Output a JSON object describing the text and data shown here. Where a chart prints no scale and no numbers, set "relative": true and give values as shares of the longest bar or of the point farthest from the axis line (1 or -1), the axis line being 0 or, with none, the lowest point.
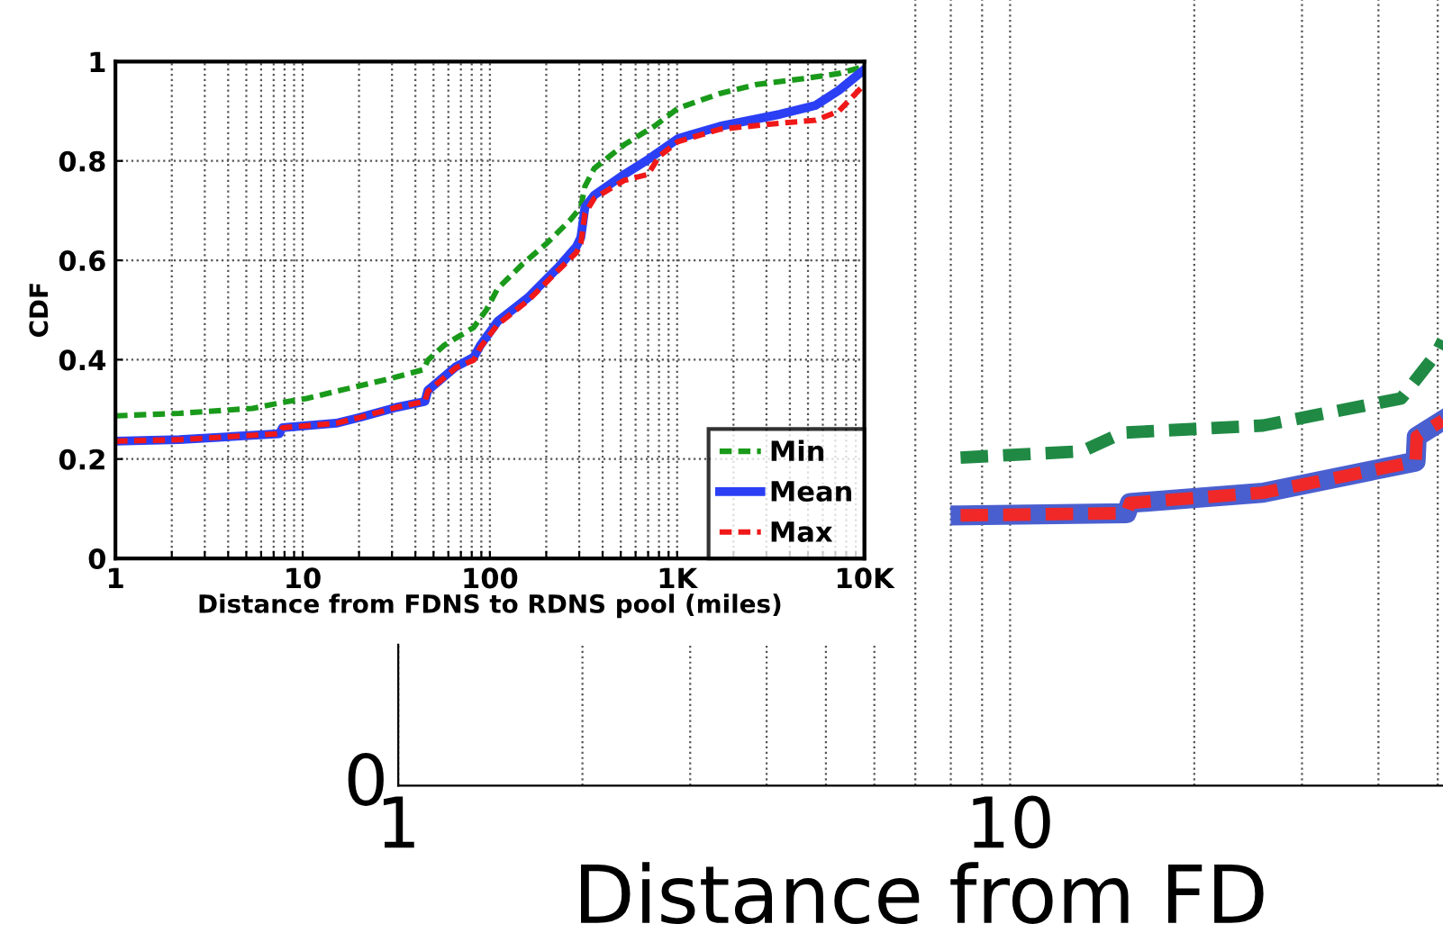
{
  "chart_data": [
    {
      "type": "line",
      "xlabel": "Distance from FDNS to RDNS pool (miles)",
      "ylabel": "CDF",
      "log": "x",
      "grid": true,
      "legend": "bottom right",
      "xlim": [
        1,
        10000
      ],
      "ylim": [
        0,
        1
      ],
      "xticks": [
        1,
        {
          "value": 2,
          "label": null
        },
        {
          "value": 3,
          "label": null
        },
        {
          "value": 4,
          "label": null
        },
        {
          "value": 5,
          "label": null
        },
        {
          "value": 6,
          "label": null
        },
        {
          "value": 7,
          "label": null
        },
        {
          "value": 8,
          "label": null
        },
        {
          "value": 9,
          "label": null
        },
        10,
        {
          "value": 20,
          "label": null
        },
        {
          "value": 30,
          "label": null
        },
        {
          "value": 40,
          "label": null
        },
        {
          "value": 50,
          "label": null
        },
        {
          "value": 60,
          "label": null
        },
        {
          "value": 70,
          "label": null
        },
        {
          "value": 80,
          "label": null
        },
        {
          "value": 90,
          "label": null
        },
        100,
        {
          "value": 200,
          "label": null
        },
        {
          "value": 300,
          "label": null
        },
        {
          "value": 400,
          "label": null
        },
        {
          "value": 500,
          "label": null
        },
        {
          "value": 600,
          "label": null
        },
        {
          "value": 700,
          "label": null
        },
        {
          "value": 800,
          "label": null
        },
        {
          "value": 900,
          "label": null
        },
        {
          "value": 1000,
          "label": "1K"
        },
        {
          "value": 2000,
          "label": null
        },
        {
          "value": 3000,
          "label": null
        },
        {
          "value": 4000,
          "label": null
        },
        {
          "value": 5000,
          "label": null
        },
        {
          "value": 6000,
          "label": null
        },
        {
          "value": 7000,
          "label": null
        },
        {
          "value": 8000,
          "label": null
        },
        {
          "value": 9000,
          "label": null
        },
        {
          "value": 10000,
          "label": "10K"
        }
      ],
      "yticks": [
        0,
        0.2,
        0.4,
        0.6,
        0.8,
        1
      ],
      "series": [
        {
          "name": "Min",
          "color": "#1a9a1a",
          "line_style": "dashed",
          "x": [
            1,
            2.2,
            5.4,
            7.8,
            10.5,
            17.5,
            29.4,
            44.3,
            46.6,
            57,
            82,
            96,
            110,
            149,
            201,
            270,
            306,
            322,
            361,
            523,
            756,
            1010,
            1700,
            2670,
            4780,
            7300,
            10000
          ],
          "values": [
            0.287,
            0.292,
            0.302,
            0.314,
            0.322,
            0.342,
            0.362,
            0.38,
            0.399,
            0.429,
            0.465,
            0.501,
            0.543,
            0.592,
            0.634,
            0.682,
            0.707,
            0.749,
            0.785,
            0.833,
            0.87,
            0.906,
            0.936,
            0.954,
            0.966,
            0.976,
            0.99
          ]
        },
        {
          "name": "Mean",
          "color": "#2b3ff5",
          "line_style": "solid",
          "x": [
            1,
            2.2,
            7.5,
            7.8,
            15.1,
            20.3,
            31.6,
            45,
            46.6,
            66,
            82,
            89,
            110,
            160,
            232,
            290,
            306,
            322,
            361,
            523,
            700,
            1010,
            1700,
            3550,
            5500,
            7300,
            10000
          ],
          "values": [
            0.236,
            0.239,
            0.251,
            0.263,
            0.272,
            0.284,
            0.304,
            0.316,
            0.338,
            0.386,
            0.405,
            0.429,
            0.477,
            0.525,
            0.586,
            0.628,
            0.646,
            0.707,
            0.731,
            0.773,
            0.803,
            0.845,
            0.87,
            0.894,
            0.912,
            0.942,
            0.984
          ]
        },
        {
          "name": "Max",
          "color": "#f01818",
          "line_style": "dashed",
          "x": [
            1,
            2.2,
            7.5,
            7.8,
            15.1,
            20.3,
            31.6,
            45,
            46.6,
            66,
            82,
            89,
            110,
            160,
            232,
            290,
            306,
            322,
            361,
            523,
            700,
            800,
            1010,
            1700,
            3550,
            5500,
            7300,
            10000
          ],
          "values": [
            0.236,
            0.239,
            0.251,
            0.263,
            0.272,
            0.284,
            0.304,
            0.316,
            0.336,
            0.384,
            0.399,
            0.425,
            0.471,
            0.519,
            0.58,
            0.616,
            0.634,
            0.694,
            0.725,
            0.761,
            0.773,
            0.809,
            0.839,
            0.864,
            0.876,
            0.882,
            0.9,
            0.954
          ]
        }
      ]
    },
    {
      "type": "line",
      "xlabel": "Distance from FD",
      "log": "x",
      "grid": "x",
      "relative": true,
      "annotations": [
        "0"
      ],
      "xlim": [
        1,
        51
      ],
      "xticks": [
        1,
        {
          "value": 2,
          "label": null
        },
        {
          "value": 3,
          "label": null
        },
        {
          "value": 4,
          "label": null
        },
        {
          "value": 5,
          "label": null
        },
        {
          "value": 6,
          "label": null
        },
        {
          "value": 7,
          "label": null
        },
        {
          "value": 8,
          "label": null
        },
        {
          "value": 9,
          "label": null
        },
        10,
        {
          "value": 20,
          "label": null
        },
        {
          "value": 30,
          "label": null
        },
        {
          "value": 40,
          "label": null
        },
        {
          "value": 50,
          "label": null
        }
      ],
      "series": [
        {
          "color": "#208a45",
          "line_style": "dashed",
          "x": [
            8.3,
            13.1,
            15.3,
            25.9,
            43.6,
            49.7,
            51
          ],
          "values": [
            0.737,
            0.751,
            0.793,
            0.809,
            0.87,
            0.97,
            1
          ]
        },
        {
          "color": "#4a5fcf",
          "line_style": "solid",
          "x": [
            8.3,
            15.5,
            15.7,
            25.9,
            46,
            46.2,
            51
          ],
          "values": [
            0.607,
            0.612,
            0.635,
            0.658,
            0.728,
            0.784,
            0.821
          ]
        },
        {
          "color": "#f02828",
          "line_style": "dashed",
          "x": [
            8.3,
            15.5,
            15.7,
            25.9,
            46,
            46.2,
            51
          ],
          "values": [
            0.607,
            0.612,
            0.635,
            0.658,
            0.728,
            0.784,
            0.821
          ]
        }
      ]
    }
  ]
}
